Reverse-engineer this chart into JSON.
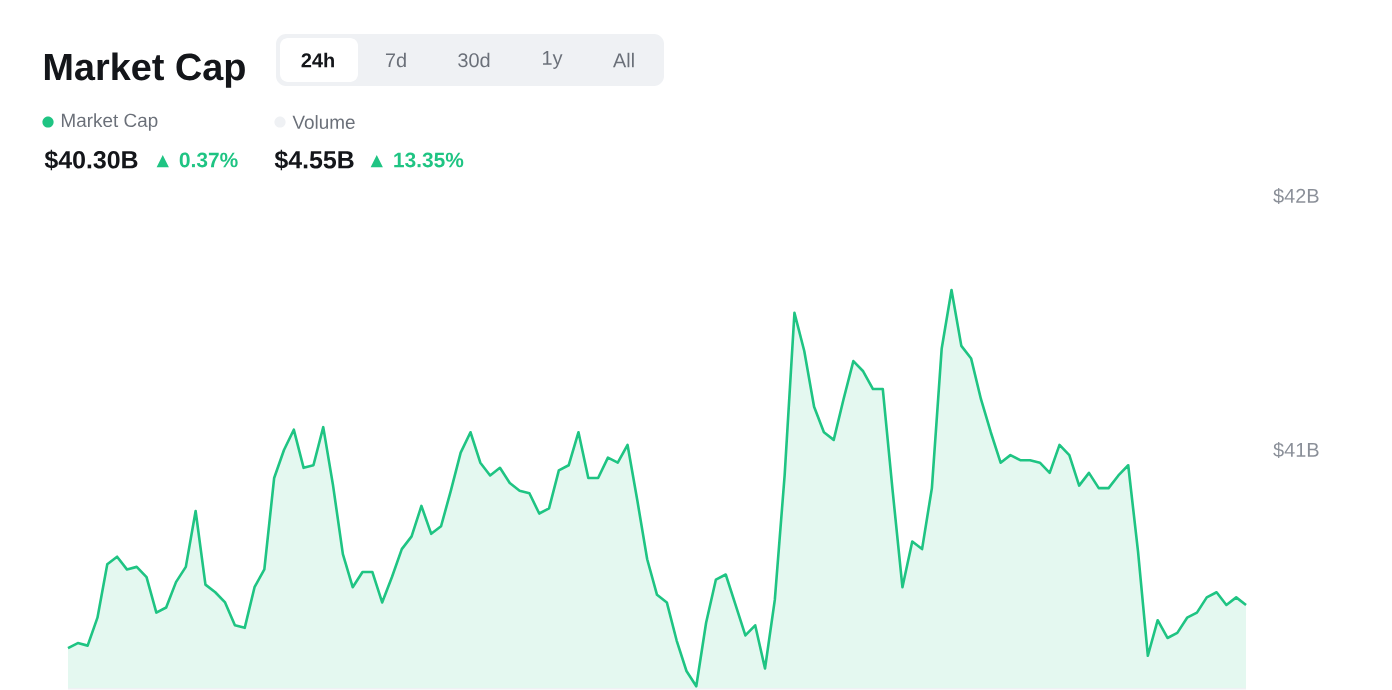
{
  "chart_data": {
    "type": "area",
    "title": "Market Cap",
    "annotations": [
      "24h",
      "7d",
      "30d",
      "1y",
      "All",
      "Volume",
      "$40.30B",
      "▲ 0.37%",
      "$4.55B",
      "▲ 13.35%"
    ],
    "categories": [
      null,
      null,
      null,
      null,
      null,
      null,
      null,
      null,
      null,
      null,
      null,
      null,
      null,
      null,
      null,
      null,
      null,
      null,
      null,
      null,
      null,
      null,
      null,
      null,
      null,
      null,
      null,
      null,
      null,
      null,
      null,
      null,
      null,
      null,
      null,
      null,
      null,
      null,
      null,
      null,
      null,
      null,
      null,
      null,
      null,
      null,
      null,
      null,
      null,
      null,
      null,
      null,
      null,
      null,
      null,
      null,
      null,
      null,
      null,
      null,
      null,
      null,
      null,
      null,
      null,
      null,
      null,
      null,
      null,
      null,
      null,
      null,
      null,
      null,
      null,
      null,
      null,
      null,
      null,
      null,
      null,
      null,
      null,
      null,
      null,
      null,
      null,
      null,
      null,
      null,
      null,
      null,
      null,
      null,
      null,
      null,
      null,
      null,
      null,
      null,
      null,
      null,
      null,
      null,
      null,
      null,
      null,
      null,
      null,
      null,
      null,
      null,
      null,
      null,
      null,
      null,
      null,
      null,
      null,
      null,
      null
    ],
    "series": [
      {
        "name": "Market Cap",
        "color": "#1fc483",
        "values": [
          40.22,
          40.24,
          40.23,
          40.34,
          40.55,
          40.58,
          40.53,
          40.54,
          40.5,
          40.36,
          40.38,
          40.48,
          40.54,
          40.76,
          40.47,
          40.44,
          40.4,
          40.31,
          40.3,
          40.46,
          40.53,
          40.89,
          41.0,
          41.08,
          40.93,
          40.94,
          41.09,
          40.86,
          40.59,
          40.46,
          40.52,
          40.52,
          40.4,
          40.5,
          40.61,
          40.66,
          40.78,
          40.67,
          40.7,
          40.84,
          40.99,
          41.07,
          40.95,
          40.9,
          40.93,
          40.87,
          40.84,
          40.83,
          40.75,
          40.77,
          40.92,
          40.94,
          41.07,
          40.89,
          40.89,
          40.97,
          40.95,
          41.02,
          40.8,
          40.57,
          40.43,
          40.4,
          40.25,
          40.13,
          40.07,
          40.32,
          40.49,
          40.51,
          40.39,
          40.27,
          40.31,
          40.14,
          40.41,
          40.9,
          41.54,
          41.39,
          41.17,
          41.07,
          41.04,
          41.2,
          41.35,
          41.31,
          41.24,
          41.24,
          40.84,
          40.46,
          40.64,
          40.61,
          40.85,
          41.4,
          41.63,
          41.41,
          41.36,
          41.2,
          41.07,
          40.95,
          40.98,
          40.96,
          40.96,
          40.95,
          40.91,
          41.02,
          40.98,
          40.86,
          40.91,
          40.85,
          40.85,
          40.9,
          40.94,
          40.6,
          40.19,
          40.33,
          40.26,
          40.28,
          40.34,
          40.36,
          40.42,
          40.44,
          40.39,
          40.42,
          40.39
        ]
      }
    ],
    "ylim": [
      40.06,
      42
    ],
    "yticks": [
      {
        "value": 41,
        "label": "$41B"
      },
      {
        "value": 42,
        "label": "$42B"
      }
    ],
    "tick_labels": "y",
    "legend": "top left"
  }
}
